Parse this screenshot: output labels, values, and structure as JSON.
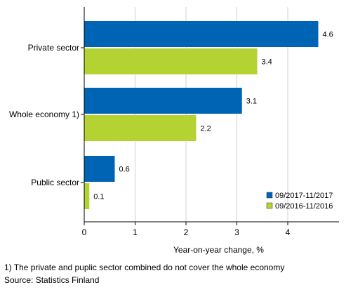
{
  "chart_data": {
    "type": "bar",
    "orientation": "horizontal",
    "categories": [
      "Private sector",
      "Whole economy 1)",
      "Public sector"
    ],
    "series": [
      {
        "name": "09/2017-11/2017",
        "values": [
          4.6,
          3.1,
          0.6
        ],
        "color": "#0064b4"
      },
      {
        "name": "09/2016-11/2016",
        "values": [
          3.4,
          2.2,
          0.1
        ],
        "color": "#b4d232"
      }
    ],
    "value_labels": [
      [
        "4.6",
        "3.1",
        "0.6"
      ],
      [
        "3.4",
        "2.2",
        "0.1"
      ]
    ],
    "xlabel": "Year-on-year change, %",
    "xlim": [
      0,
      4.8
    ],
    "xticks": [
      0,
      1,
      2,
      3,
      4
    ],
    "xtick_labels": [
      "0",
      "1",
      "2",
      "3",
      "4"
    ],
    "grid": "vertical",
    "legend_position": "bottom-right"
  },
  "footnotes": {
    "note": "1) The private and puplic sector combined do not cover the whole economy",
    "source": "Source: Statistics Finland"
  }
}
